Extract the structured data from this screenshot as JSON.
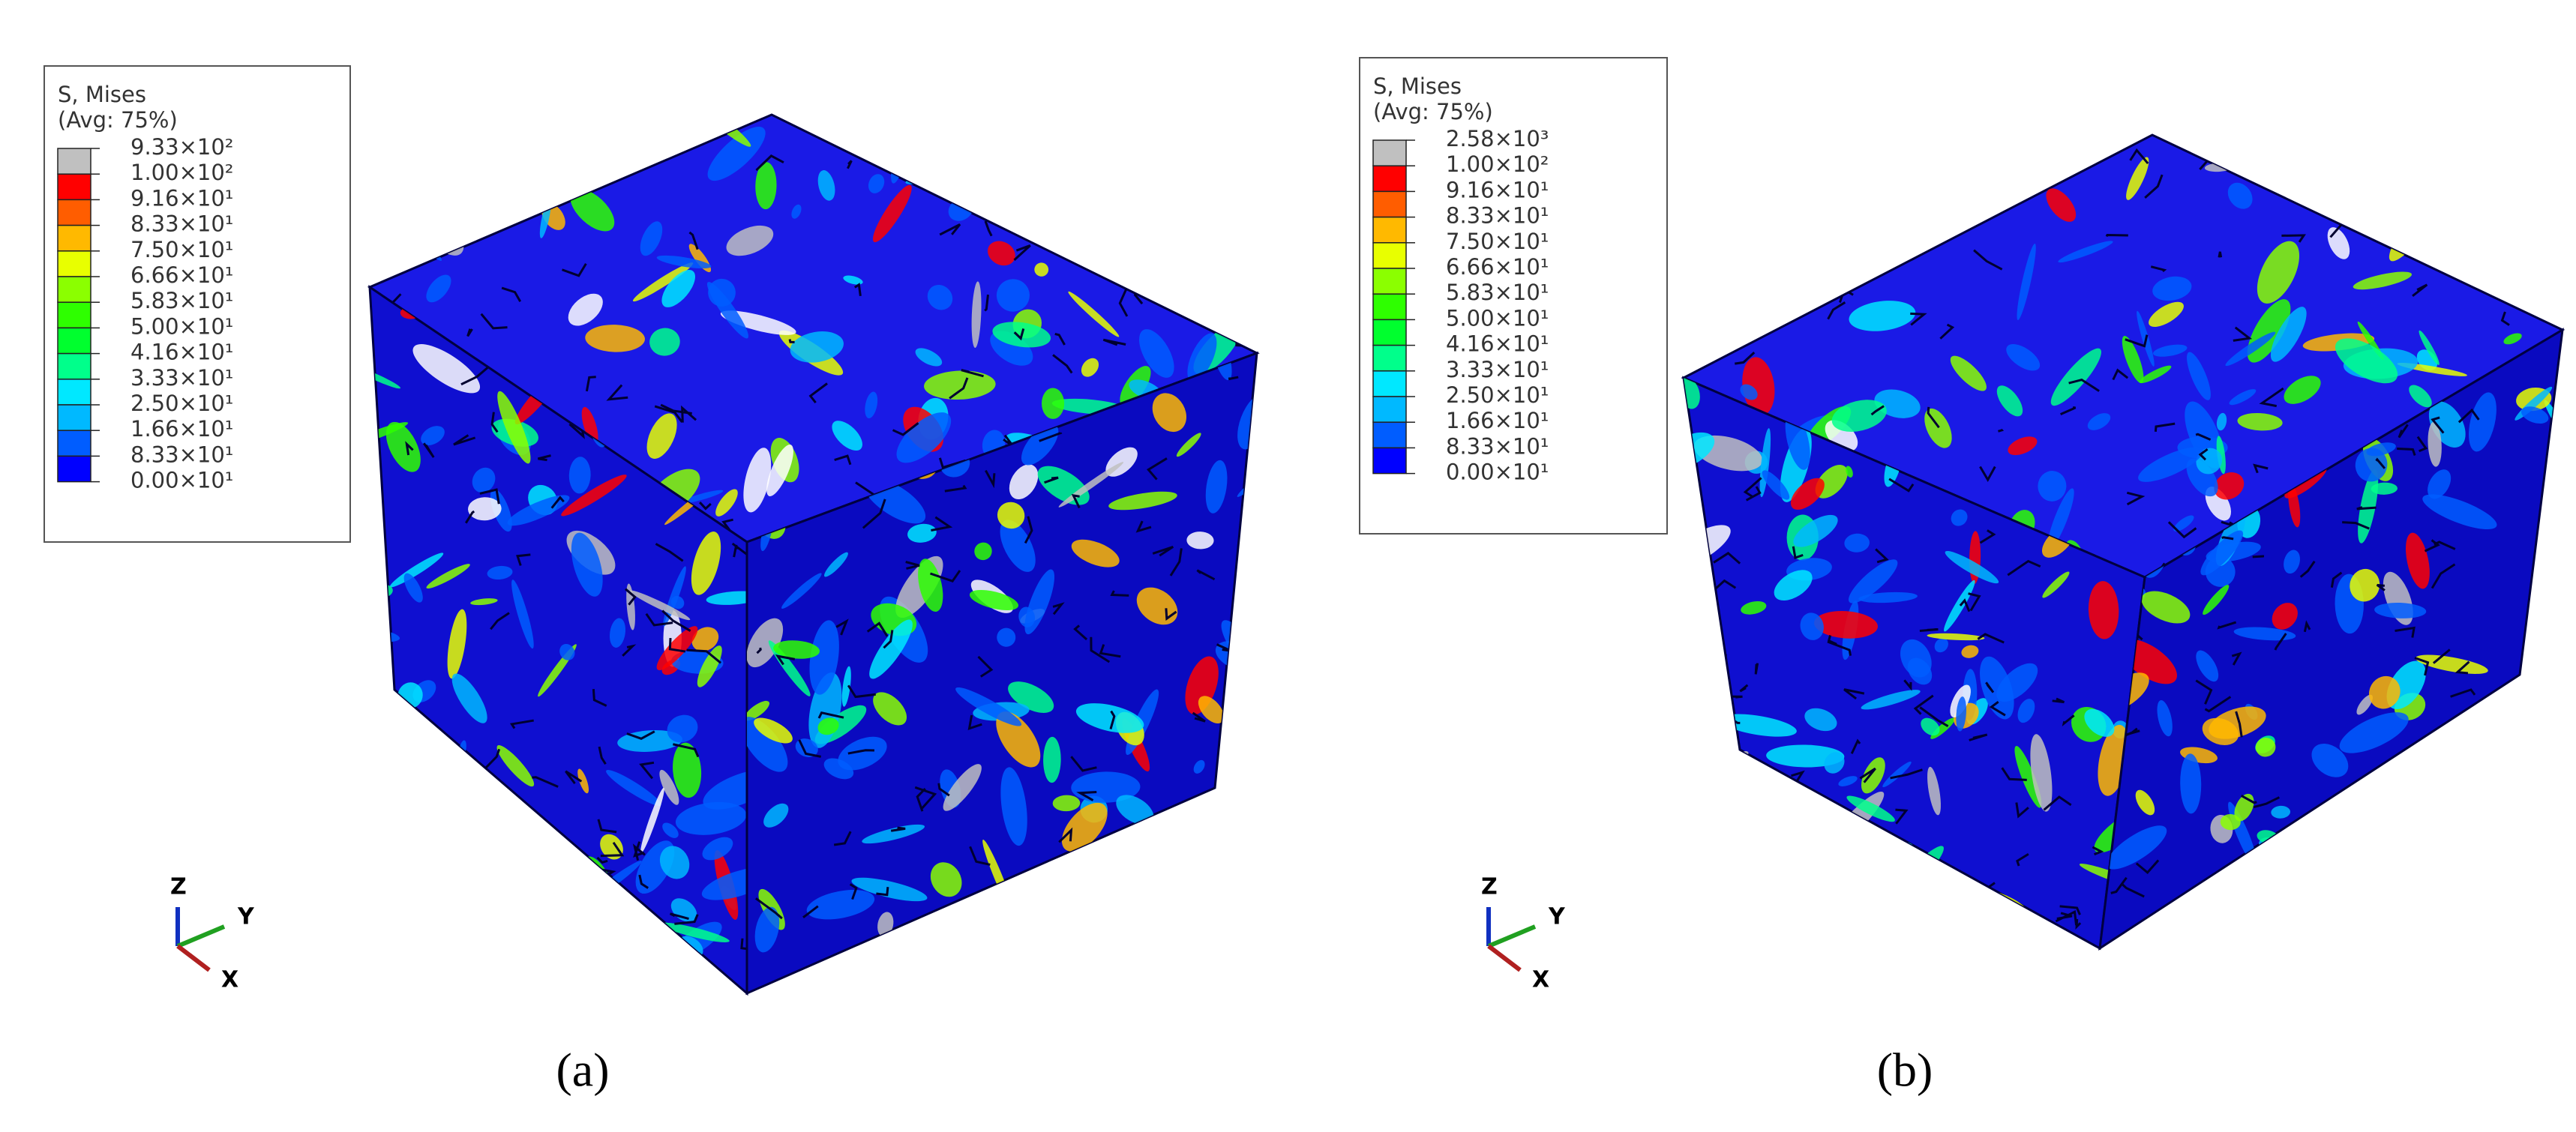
{
  "panels": [
    {
      "legend": {
        "title": "S, Mises",
        "subtitle": "(Avg: 75%)",
        "labels": [
          "9.33×10²",
          "1.00×10²",
          "9.16×10¹",
          "8.33×10¹",
          "7.50×10¹",
          "6.66×10¹",
          "5.83×10¹",
          "5.00×10¹",
          "4.16×10¹",
          "3.33×10¹",
          "2.50×10¹",
          "1.66×10¹",
          "8.33×10¹",
          "0.00×10¹"
        ],
        "colors": [
          "#c0c0c0",
          "#ff0000",
          "#ff5d00",
          "#ffb900",
          "#e8ff00",
          "#8bff00",
          "#2eff00",
          "#00ff2e",
          "#00ff8b",
          "#00e8ff",
          "#00b9ff",
          "#005dff",
          "#0000ff"
        ]
      },
      "triad": {
        "z": "Z",
        "y": "Y",
        "x": "X"
      },
      "caption": "(a)"
    },
    {
      "legend": {
        "title": "S, Mises",
        "subtitle": "(Avg: 75%)",
        "labels": [
          "2.58×10³",
          "1.00×10²",
          "9.16×10¹",
          "8.33×10¹",
          "7.50×10¹",
          "6.66×10¹",
          "5.83×10¹",
          "5.00×10¹",
          "4.16×10¹",
          "3.33×10¹",
          "2.50×10¹",
          "1.66×10¹",
          "8.33×10¹",
          "0.00×10¹"
        ],
        "colors": [
          "#c0c0c0",
          "#ff0000",
          "#ff5d00",
          "#ffb900",
          "#e8ff00",
          "#8bff00",
          "#2eff00",
          "#00ff2e",
          "#00ff8b",
          "#00e8ff",
          "#00b9ff",
          "#005dff",
          "#0000ff"
        ]
      },
      "triad": {
        "z": "Z",
        "y": "Y",
        "x": "X"
      },
      "caption": "(b)"
    }
  ]
}
